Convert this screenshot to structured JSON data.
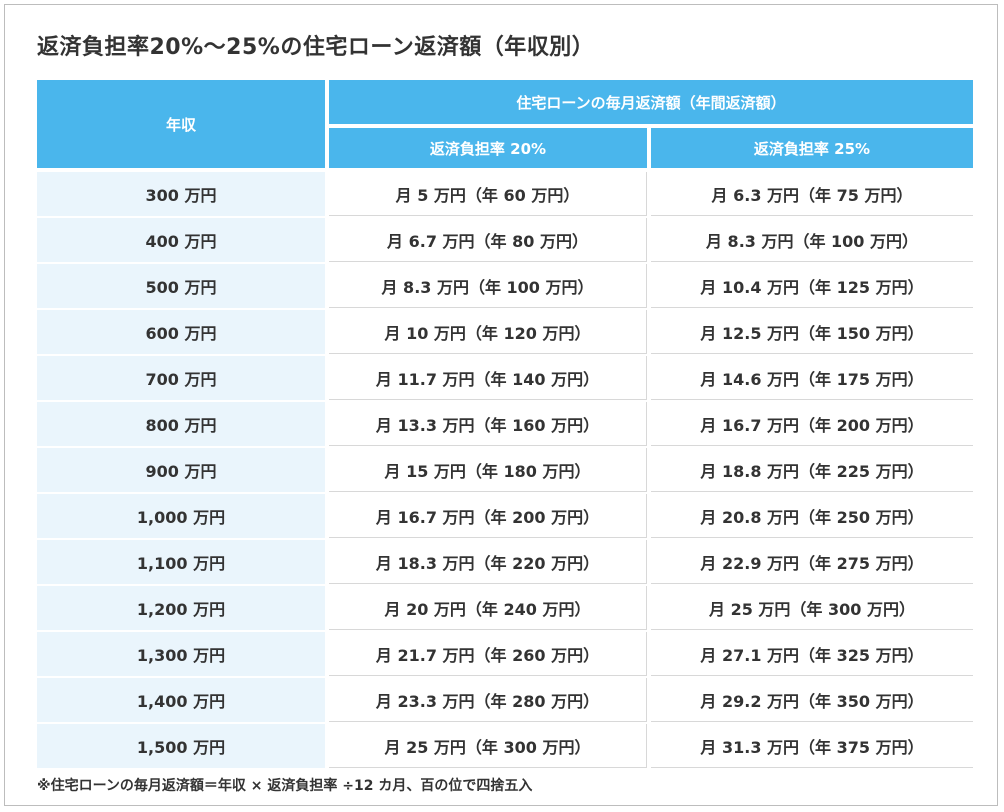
{
  "title": "返済負担率20%〜25%の住宅ローン返済額（年収別）",
  "header": {
    "year": "年収",
    "group": "住宅ローンの毎月返済額（年間返済額）",
    "rate20": "返済負担率 20%",
    "rate25": "返済負担率 25%"
  },
  "rows": [
    {
      "year": "300 万円",
      "r20": "月 5 万円（年 60 万円）",
      "r25": "月 6.3 万円（年 75 万円）"
    },
    {
      "year": "400 万円",
      "r20": "月 6.7 万円（年 80 万円）",
      "r25": "月 8.3 万円（年 100 万円）"
    },
    {
      "year": "500 万円",
      "r20": "月 8.3 万円（年 100 万円）",
      "r25": "月 10.4 万円（年 125 万円）"
    },
    {
      "year": "600 万円",
      "r20": "月 10 万円（年 120 万円）",
      "r25": "月 12.5 万円（年 150 万円）"
    },
    {
      "year": "700 万円",
      "r20": "月 11.7 万円（年 140 万円）",
      "r25": "月 14.6 万円（年 175 万円）"
    },
    {
      "year": "800 万円",
      "r20": "月 13.3 万円（年 160 万円）",
      "r25": "月 16.7 万円（年 200 万円）"
    },
    {
      "year": "900 万円",
      "r20": "月 15 万円（年 180 万円）",
      "r25": "月 18.8 万円（年 225 万円）"
    },
    {
      "year": "1,000 万円",
      "r20": "月 16.7 万円（年 200 万円）",
      "r25": "月 20.8 万円（年 250 万円）"
    },
    {
      "year": "1,100 万円",
      "r20": "月 18.3 万円（年 220 万円）",
      "r25": "月 22.9 万円（年 275 万円）"
    },
    {
      "year": "1,200 万円",
      "r20": "月 20 万円（年 240 万円）",
      "r25": "月 25 万円（年 300 万円）"
    },
    {
      "year": "1,300 万円",
      "r20": "月 21.7 万円（年 260 万円）",
      "r25": "月 27.1 万円（年 325 万円）"
    },
    {
      "year": "1,400 万円",
      "r20": "月 23.3 万円（年 280 万円）",
      "r25": "月 29.2 万円（年 350 万円）"
    },
    {
      "year": "1,500 万円",
      "r20": "月 25 万円（年 300 万円）",
      "r25": "月 31.3 万円（年 375 万円）"
    }
  ],
  "note": "※住宅ローンの毎月返済額＝年収 × 返済負担率 ÷12 カ月、百の位で四捨五入",
  "colors": {
    "header_bg": "#4ab6ec",
    "year_cell_bg": "#eaf5fc"
  }
}
